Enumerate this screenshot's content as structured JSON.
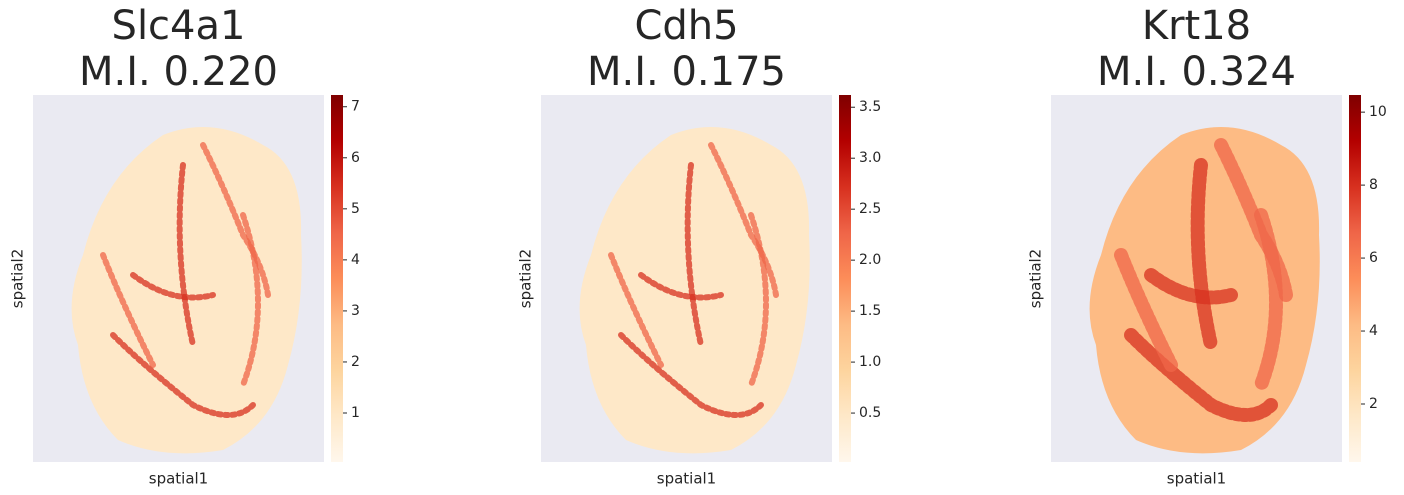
{
  "chart_data": [
    {
      "type": "spatial-scatter",
      "title": "Slc4a1",
      "subtitle": "M.I. 0.220",
      "xlabel": "spatial1",
      "ylabel": "spatial2",
      "clim": [
        0.04,
        7.23
      ],
      "cticks": [
        1,
        2,
        3,
        4,
        5,
        6,
        7
      ],
      "colormap": [
        "#fff7ec",
        "#fee8c8",
        "#fdd49e",
        "#fdbb84",
        "#fc8d59",
        "#ef6548",
        "#d7301f",
        "#b30000",
        "#7f0000"
      ]
    },
    {
      "type": "spatial-scatter",
      "title": "Cdh5",
      "subtitle": "M.I. 0.175",
      "xlabel": "spatial1",
      "ylabel": "spatial2",
      "clim": [
        0.02,
        3.62
      ],
      "cticks": [
        0.5,
        {
          "value": 1,
          "label": "1.0"
        },
        1.5,
        {
          "value": 2,
          "label": "2.0"
        },
        2.5,
        {
          "value": 3,
          "label": "3.0"
        },
        3.5
      ],
      "colormap": [
        "#fff7ec",
        "#fee8c8",
        "#fdd49e",
        "#fdbb84",
        "#fc8d59",
        "#ef6548",
        "#d7301f",
        "#b30000",
        "#7f0000"
      ]
    },
    {
      "type": "spatial-scatter",
      "title": "Krt18",
      "subtitle": "M.I. 0.324",
      "xlabel": "spatial1",
      "ylabel": "spatial2",
      "clim": [
        0.41,
        10.47
      ],
      "cticks": [
        2,
        4,
        6,
        8,
        10
      ],
      "colormap": [
        "#fff7ec",
        "#fee8c8",
        "#fdd49e",
        "#fdbb84",
        "#fc8d59",
        "#ef6548",
        "#d7301f",
        "#b30000",
        "#7f0000"
      ]
    }
  ]
}
